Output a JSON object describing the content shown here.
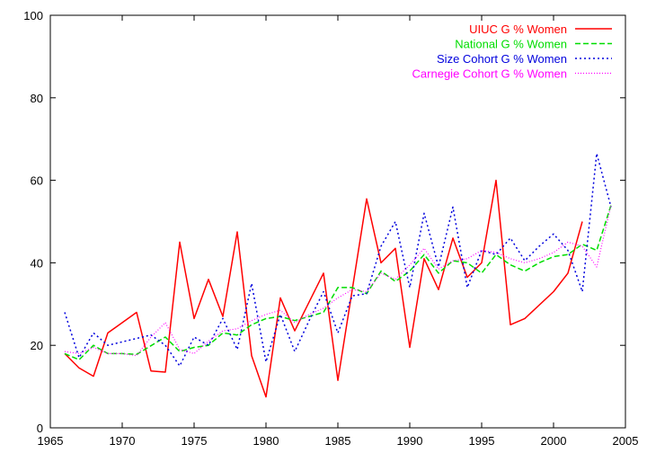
{
  "chart_data": {
    "type": "line",
    "title": "",
    "xlabel": "",
    "ylabel": "",
    "xlim": [
      1965,
      2005
    ],
    "ylim": [
      0,
      100
    ],
    "x_ticks": [
      1965,
      1970,
      1975,
      1980,
      1985,
      1990,
      1995,
      2000,
      2005
    ],
    "y_ticks": [
      0,
      20,
      40,
      60,
      80,
      100
    ],
    "grid": false,
    "legend_position": "top-right",
    "series": [
      {
        "name": "UIUC G % Women",
        "color": "#ff0000",
        "dash": "solid",
        "points": [
          [
            1966,
            18
          ],
          [
            1967,
            14.5
          ],
          [
            1968,
            12.5
          ],
          [
            1969,
            23
          ],
          [
            1971,
            28
          ],
          [
            1972,
            13.8
          ],
          [
            1973,
            13.5
          ],
          [
            1974,
            45
          ],
          [
            1975,
            26.5
          ],
          [
            1976,
            36
          ],
          [
            1977,
            27
          ],
          [
            1978,
            47.5
          ],
          [
            1979,
            17.5
          ],
          [
            1980,
            7.5
          ],
          [
            1981,
            31.5
          ],
          [
            1982,
            23.5
          ],
          [
            1984,
            37.5
          ],
          [
            1985,
            11.5
          ],
          [
            1987,
            55.5
          ],
          [
            1988,
            40
          ],
          [
            1989,
            43.5
          ],
          [
            1990,
            19.5
          ],
          [
            1991,
            41
          ],
          [
            1992,
            33.5
          ],
          [
            1993,
            46
          ],
          [
            1994,
            36.5
          ],
          [
            1995,
            40
          ],
          [
            1996,
            60
          ],
          [
            1997,
            25
          ],
          [
            1998,
            26.5
          ],
          [
            2000,
            33
          ],
          [
            2001,
            37.5
          ],
          [
            2002,
            50
          ]
        ]
      },
      {
        "name": "National G % Women",
        "color": "#00dd00",
        "dash": "dashed",
        "points": [
          [
            1966,
            18
          ],
          [
            1967,
            16.5
          ],
          [
            1968,
            20
          ],
          [
            1969,
            18
          ],
          [
            1970,
            18
          ],
          [
            1971,
            17.8
          ],
          [
            1973,
            22
          ],
          [
            1974,
            18.5
          ],
          [
            1975,
            19.5
          ],
          [
            1976,
            20
          ],
          [
            1977,
            23
          ],
          [
            1978,
            22.5
          ],
          [
            1979,
            25
          ],
          [
            1980,
            26.5
          ],
          [
            1981,
            27
          ],
          [
            1982,
            26
          ],
          [
            1983,
            27
          ],
          [
            1984,
            28
          ],
          [
            1985,
            34
          ],
          [
            1986,
            34
          ],
          [
            1987,
            32.5
          ],
          [
            1988,
            38
          ],
          [
            1989,
            35.5
          ],
          [
            1990,
            38
          ],
          [
            1991,
            42
          ],
          [
            1992,
            37.5
          ],
          [
            1993,
            40.5
          ],
          [
            1994,
            40
          ],
          [
            1995,
            37.5
          ],
          [
            1996,
            42
          ],
          [
            1997,
            39.5
          ],
          [
            1998,
            38
          ],
          [
            1999,
            40
          ],
          [
            2000,
            41.5
          ],
          [
            2001,
            42
          ],
          [
            2002,
            44.5
          ],
          [
            2003,
            43
          ],
          [
            2004,
            54
          ]
        ]
      },
      {
        "name": "Size Cohort G % Women",
        "color": "#0000dd",
        "dash": "dotted",
        "points": [
          [
            1966,
            28
          ],
          [
            1967,
            17
          ],
          [
            1968,
            23
          ],
          [
            1969,
            20
          ],
          [
            1972,
            22.5
          ],
          [
            1973,
            20
          ],
          [
            1974,
            15
          ],
          [
            1975,
            22
          ],
          [
            1976,
            20
          ],
          [
            1977,
            26.5
          ],
          [
            1978,
            19
          ],
          [
            1979,
            35
          ],
          [
            1980,
            16
          ],
          [
            1981,
            27.5
          ],
          [
            1982,
            18.5
          ],
          [
            1983,
            26
          ],
          [
            1984,
            33
          ],
          [
            1985,
            23
          ],
          [
            1986,
            32
          ],
          [
            1987,
            32.5
          ],
          [
            1988,
            44
          ],
          [
            1989,
            50
          ],
          [
            1990,
            34
          ],
          [
            1991,
            52
          ],
          [
            1992,
            39
          ],
          [
            1993,
            53.5
          ],
          [
            1994,
            34
          ],
          [
            1995,
            43
          ],
          [
            1996,
            42
          ],
          [
            1997,
            46
          ],
          [
            1998,
            40.5
          ],
          [
            1999,
            44
          ],
          [
            2000,
            47
          ],
          [
            2001,
            43
          ],
          [
            2002,
            33
          ],
          [
            2003,
            66.5
          ],
          [
            2004,
            53.5
          ]
        ]
      },
      {
        "name": "Carnegie Cohort G % Women",
        "color": "#ff00ff",
        "dash": "dotted-fine",
        "points": [
          [
            1966,
            18.5
          ],
          [
            1967,
            18
          ],
          [
            1968,
            19.5
          ],
          [
            1969,
            18
          ],
          [
            1970,
            18
          ],
          [
            1971,
            17.5
          ],
          [
            1972,
            22
          ],
          [
            1973,
            25.5
          ],
          [
            1974,
            19
          ],
          [
            1975,
            18
          ],
          [
            1976,
            21
          ],
          [
            1977,
            23.5
          ],
          [
            1978,
            24
          ],
          [
            1979,
            26
          ],
          [
            1980,
            27.5
          ],
          [
            1981,
            28.5
          ],
          [
            1982,
            25.5
          ],
          [
            1983,
            27.5
          ],
          [
            1984,
            29
          ],
          [
            1985,
            31.5
          ],
          [
            1986,
            33.5
          ],
          [
            1987,
            33
          ],
          [
            1988,
            37.5
          ],
          [
            1989,
            36
          ],
          [
            1990,
            39.5
          ],
          [
            1991,
            43.5
          ],
          [
            1992,
            38.5
          ],
          [
            1993,
            40.5
          ],
          [
            1994,
            41
          ],
          [
            1995,
            43
          ],
          [
            1996,
            42.5
          ],
          [
            1997,
            41
          ],
          [
            1998,
            40
          ],
          [
            1999,
            41
          ],
          [
            2000,
            42.5
          ],
          [
            2001,
            45
          ],
          [
            2002,
            44
          ],
          [
            2003,
            39
          ],
          [
            2004,
            54
          ]
        ]
      }
    ]
  }
}
